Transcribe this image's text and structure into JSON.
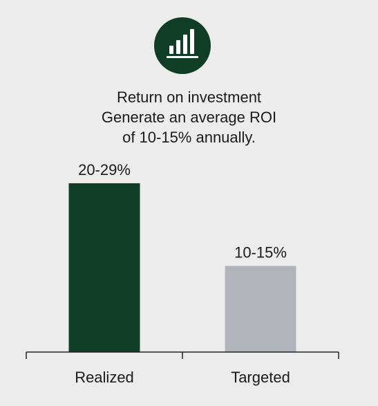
{
  "icon": {
    "name": "bar-chart-icon",
    "background": "#0f3d26",
    "foreground": "#ffffff"
  },
  "title_lines": [
    "Return on investment",
    "Generate an average ROI",
    "of 10-15% annually."
  ],
  "chart_data": {
    "type": "bar",
    "categories": [
      "Realized",
      "Targeted"
    ],
    "values": [
      24.5,
      12.5
    ],
    "value_labels": [
      "20-29%",
      "10-15%"
    ],
    "colors": [
      "#0f3d26",
      "#b1b4bb"
    ],
    "title": "",
    "xlabel": "",
    "ylabel": "",
    "ylim": [
      0,
      26
    ],
    "grid": false,
    "legend": "none"
  }
}
